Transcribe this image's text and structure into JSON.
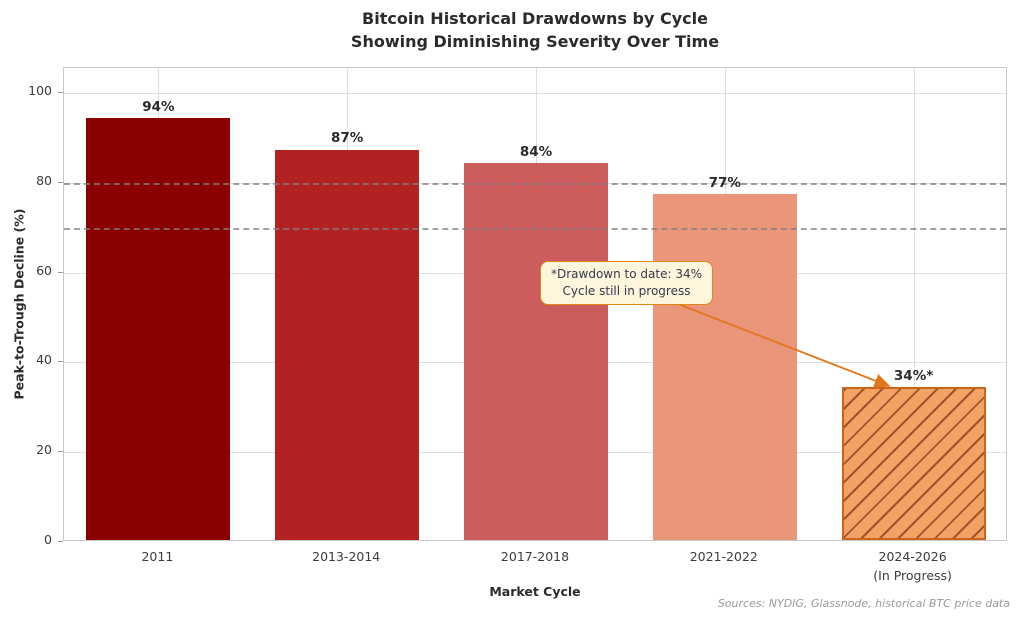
{
  "title": {
    "line1": "Bitcoin Historical Drawdowns by Cycle",
    "line2": "Showing Diminishing Severity Over Time"
  },
  "axes": {
    "y_label": "Peak-to-Trough Decline (%)",
    "x_label": "Market Cycle"
  },
  "annotation": {
    "line1": "*Drawdown to date: 34%",
    "line2": "Cycle still in progress"
  },
  "source": "Sources: NYDIG, Glassnode, historical BTC price data",
  "colors": {
    "bar_2011": "#8b0000",
    "bar_2013_2014": "#b22222",
    "bar_2017_2018": "#cd5c5c",
    "bar_2021_2022": "#e9967a",
    "bar_2024_2026_fill": "#f2a262",
    "bar_2024_2026_hatch": "#a0522d",
    "bar_2024_2026_edge": "#c9661c",
    "annotation_bg": "#fdf6dc",
    "annotation_border": "#e08618",
    "arrow": "#e2761b",
    "reference_line": "#808080",
    "grid": "#dedede"
  },
  "chart_data": {
    "type": "bar",
    "title": "Bitcoin Historical Drawdowns by Cycle",
    "subtitle": "Showing Diminishing Severity Over Time",
    "xlabel": "Market Cycle",
    "ylabel": "Peak-to-Trough Decline (%)",
    "categories": [
      [
        "2011"
      ],
      [
        "2013-2014"
      ],
      [
        "2017-2018"
      ],
      [
        "2021-2022"
      ],
      [
        "2024-2026",
        "(In Progress)"
      ]
    ],
    "values": [
      94,
      87,
      84,
      77,
      34
    ],
    "value_labels": [
      "94%",
      "87%",
      "84%",
      "77%",
      "34%*"
    ],
    "bar_colors": [
      "#8b0000",
      "#b22222",
      "#cd5c5c",
      "#e9967a",
      "#f2a262"
    ],
    "bar_styles": [
      "solid",
      "solid",
      "solid",
      "solid",
      "hatched"
    ],
    "y_ticks": [
      0,
      20,
      40,
      60,
      80,
      100
    ],
    "ylim": [
      0,
      105.6
    ],
    "reference_lines": [
      80,
      70
    ],
    "grid": true,
    "annotation_text": "*Drawdown to date: 34%\nCycle still in progress",
    "source_note": "Sources: NYDIG, Glassnode, historical BTC price data"
  }
}
